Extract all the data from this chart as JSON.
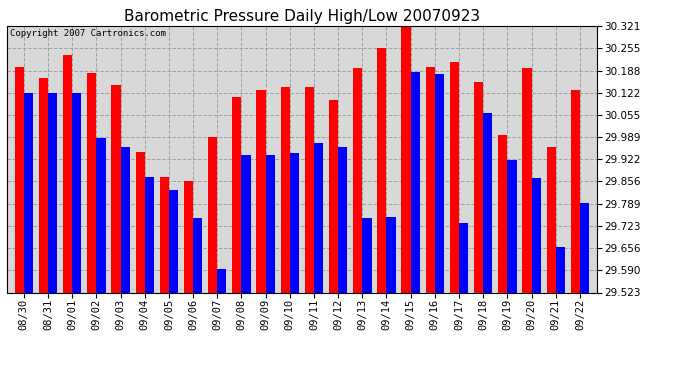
{
  "title": "Barometric Pressure Daily High/Low 20070923",
  "copyright": "Copyright 2007 Cartronics.com",
  "dates": [
    "08/30",
    "08/31",
    "09/01",
    "09/02",
    "09/03",
    "09/04",
    "09/05",
    "09/06",
    "09/07",
    "09/08",
    "09/09",
    "09/10",
    "09/11",
    "09/12",
    "09/13",
    "09/14",
    "09/15",
    "09/16",
    "09/17",
    "09/18",
    "09/19",
    "09/20",
    "09/21",
    "09/22"
  ],
  "highs": [
    30.2,
    30.165,
    30.235,
    30.18,
    30.145,
    29.945,
    29.87,
    29.858,
    29.99,
    30.11,
    30.13,
    30.14,
    30.14,
    30.1,
    30.195,
    30.255,
    30.325,
    30.2,
    30.215,
    30.155,
    29.995,
    30.195,
    29.96,
    30.13
  ],
  "lows": [
    30.12,
    30.12,
    30.12,
    29.985,
    29.96,
    29.87,
    29.83,
    29.745,
    29.592,
    29.935,
    29.935,
    29.94,
    29.97,
    29.96,
    29.745,
    29.75,
    30.185,
    30.178,
    29.73,
    30.06,
    29.92,
    29.867,
    29.66,
    29.79
  ],
  "ylim_min": 29.523,
  "ylim_max": 30.321,
  "yticks": [
    29.523,
    29.59,
    29.656,
    29.723,
    29.789,
    29.856,
    29.922,
    29.989,
    30.055,
    30.122,
    30.188,
    30.255,
    30.321
  ],
  "high_color": "#ff0000",
  "low_color": "#0000ff",
  "bg_color": "#ffffff",
  "plot_bg_color": "#d8d8d8",
  "grid_color": "#aaaaaa",
  "title_fontsize": 11,
  "tick_fontsize": 7.5,
  "bar_width": 0.38
}
